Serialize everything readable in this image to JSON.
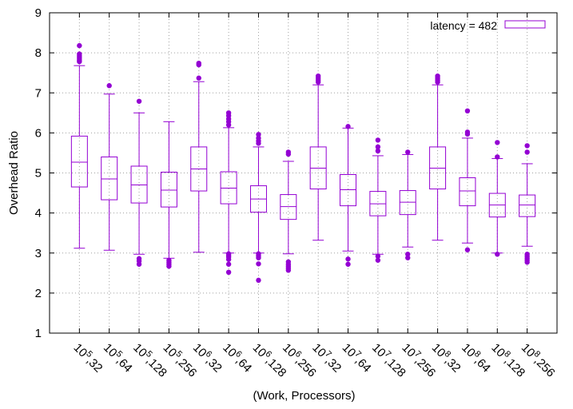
{
  "chart_data": {
    "type": "box",
    "title": "",
    "xlabel": "(Work, Processors)",
    "ylabel": "Overhead Ratio",
    "ylim": [
      1,
      9
    ],
    "yticks": [
      1,
      2,
      3,
      4,
      5,
      6,
      7,
      8,
      9
    ],
    "grid": true,
    "legend_position": "top-right",
    "series": [
      {
        "name": "latency = 482",
        "color": "#9400d3",
        "boxes": [
          {
            "work_exp": "5",
            "proc": "32",
            "whisker_low": 3.12,
            "q1": 4.65,
            "median": 5.27,
            "q3": 5.92,
            "whisker_high": 7.68,
            "outliers": [
              7.78,
              7.82,
              7.87,
              7.92,
              7.97,
              8.18
            ]
          },
          {
            "work_exp": "5",
            "proc": "64",
            "whisker_low": 3.07,
            "q1": 4.33,
            "median": 4.85,
            "q3": 5.4,
            "whisker_high": 6.97,
            "outliers": [
              7.18
            ]
          },
          {
            "work_exp": "5",
            "proc": "128",
            "whisker_low": 2.97,
            "q1": 4.25,
            "median": 4.7,
            "q3": 5.17,
            "whisker_high": 6.5,
            "outliers": [
              2.72,
              2.8,
              2.86,
              6.79
            ]
          },
          {
            "work_exp": "5",
            "proc": "256",
            "whisker_low": 2.87,
            "q1": 4.15,
            "median": 4.57,
            "q3": 5.02,
            "whisker_high": 6.28,
            "outliers": [
              2.67,
              2.72,
              2.77,
              2.82
            ]
          },
          {
            "work_exp": "6",
            "proc": "32",
            "whisker_low": 3.02,
            "q1": 4.55,
            "median": 5.1,
            "q3": 5.65,
            "whisker_high": 7.28,
            "outliers": [
              7.37,
              7.7,
              7.74
            ]
          },
          {
            "work_exp": "6",
            "proc": "64",
            "whisker_low": 3.0,
            "q1": 4.23,
            "median": 4.62,
            "q3": 5.03,
            "whisker_high": 6.13,
            "outliers": [
              2.52,
              2.72,
              2.84,
              2.9,
              2.94,
              2.98,
              6.2,
              6.28,
              6.35,
              6.43,
              6.5
            ]
          },
          {
            "work_exp": "6",
            "proc": "128",
            "whisker_low": 3.0,
            "q1": 4.02,
            "median": 4.35,
            "q3": 4.68,
            "whisker_high": 5.65,
            "outliers": [
              2.32,
              2.73,
              2.88,
              2.93,
              2.98,
              5.74,
              5.8,
              5.87,
              5.96
            ]
          },
          {
            "work_exp": "6",
            "proc": "256",
            "whisker_low": 2.98,
            "q1": 3.84,
            "median": 4.16,
            "q3": 4.46,
            "whisker_high": 5.29,
            "outliers": [
              2.57,
              2.62,
              2.67,
              2.72,
              2.78,
              5.47,
              5.52
            ]
          },
          {
            "work_exp": "7",
            "proc": "32",
            "whisker_low": 3.32,
            "q1": 4.6,
            "median": 5.12,
            "q3": 5.65,
            "whisker_high": 7.2,
            "outliers": [
              7.27,
              7.32,
              7.37,
              7.42
            ]
          },
          {
            "work_exp": "7",
            "proc": "64",
            "whisker_low": 3.05,
            "q1": 4.18,
            "median": 4.58,
            "q3": 4.96,
            "whisker_high": 6.12,
            "outliers": [
              2.72,
              2.85,
              6.16
            ]
          },
          {
            "work_exp": "7",
            "proc": "128",
            "whisker_low": 2.97,
            "q1": 3.93,
            "median": 4.23,
            "q3": 4.54,
            "whisker_high": 5.43,
            "outliers": [
              2.82,
              2.92,
              5.55,
              5.65,
              5.82
            ]
          },
          {
            "work_exp": "7",
            "proc": "256",
            "whisker_low": 3.15,
            "q1": 3.96,
            "median": 4.27,
            "q3": 4.56,
            "whisker_high": 5.46,
            "outliers": [
              2.88,
              2.97,
              5.52
            ]
          },
          {
            "work_exp": "8",
            "proc": "32",
            "whisker_low": 3.32,
            "q1": 4.6,
            "median": 5.12,
            "q3": 5.65,
            "whisker_high": 7.2,
            "outliers": [
              7.27,
              7.32,
              7.37,
              7.42
            ]
          },
          {
            "work_exp": "8",
            "proc": "64",
            "whisker_low": 3.25,
            "q1": 4.18,
            "median": 4.55,
            "q3": 4.88,
            "whisker_high": 5.87,
            "outliers": [
              3.08,
              5.97,
              6.02,
              6.55
            ]
          },
          {
            "work_exp": "8",
            "proc": "128",
            "whisker_low": 3.0,
            "q1": 3.9,
            "median": 4.2,
            "q3": 4.49,
            "whisker_high": 5.36,
            "outliers": [
              2.97,
              5.4,
              5.76
            ]
          },
          {
            "work_exp": "8",
            "proc": "256",
            "whisker_low": 3.17,
            "q1": 3.91,
            "median": 4.2,
            "q3": 4.45,
            "whisker_high": 5.23,
            "outliers": [
              2.77,
              2.82,
              2.87,
              2.92,
              2.97,
              5.52,
              5.68
            ]
          }
        ]
      }
    ],
    "tick_base": "10"
  }
}
